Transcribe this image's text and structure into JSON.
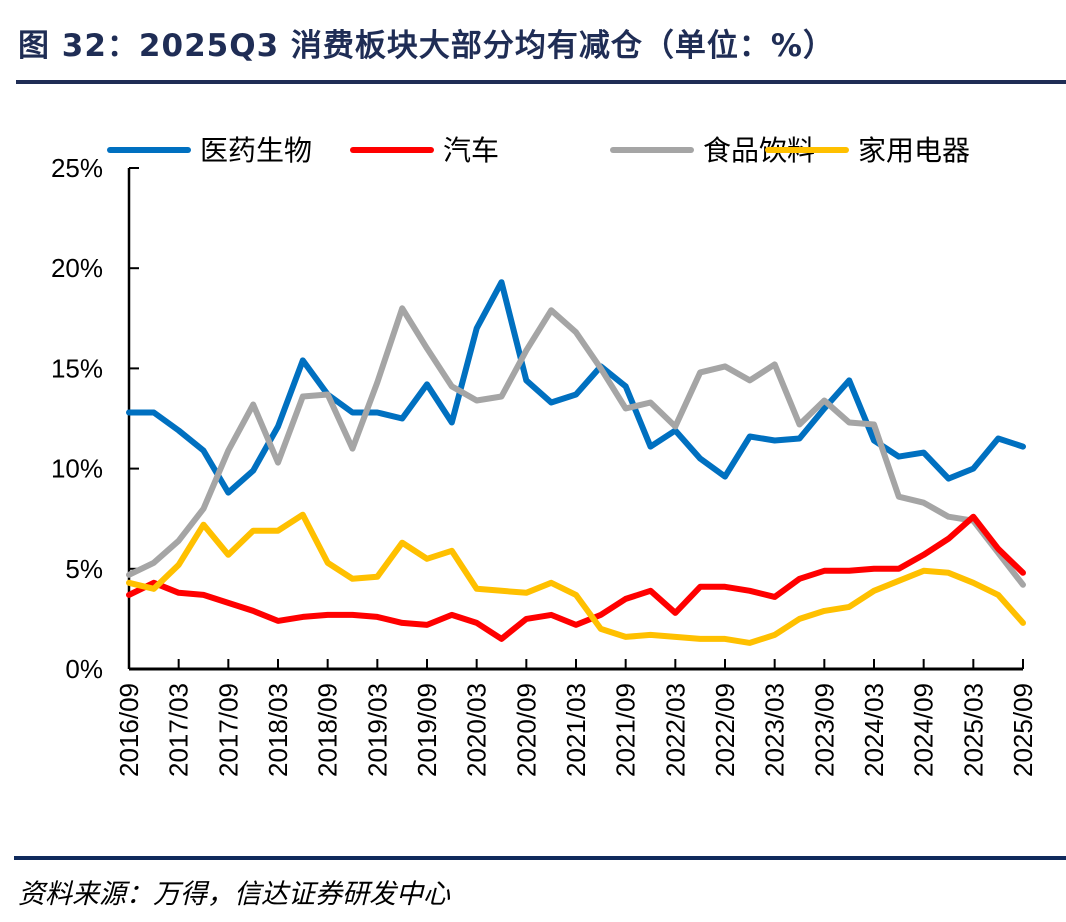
{
  "title": "图 32：2025Q3 消费板块大部分均有减仓（单位：%）",
  "source": "资料来源：万得，信达证券研发中心",
  "chart_data": {
    "type": "line",
    "title": "2025Q3 消费板块大部分均有减仓（单位：%）",
    "xlabel": "",
    "ylabel": "",
    "unit": "%",
    "ylim": [
      0,
      25
    ],
    "yticks": [
      0,
      5,
      10,
      15,
      20,
      25
    ],
    "ytick_labels": [
      "0%",
      "5%",
      "10%",
      "15%",
      "20%",
      "25%"
    ],
    "grid": false,
    "legend_position": "top",
    "x": [
      "2016/09",
      "2016/12",
      "2017/03",
      "2017/06",
      "2017/09",
      "2017/12",
      "2018/03",
      "2018/06",
      "2018/09",
      "2018/12",
      "2019/03",
      "2019/06",
      "2019/09",
      "2019/12",
      "2020/03",
      "2020/06",
      "2020/09",
      "2020/12",
      "2021/03",
      "2021/06",
      "2021/09",
      "2021/12",
      "2022/03",
      "2022/06",
      "2022/09",
      "2022/12",
      "2023/03",
      "2023/06",
      "2023/09",
      "2023/12",
      "2024/03",
      "2024/06",
      "2024/09",
      "2024/12",
      "2025/03",
      "2025/06",
      "2025/09"
    ],
    "xtick_labels": [
      "2016/09",
      "2017/03",
      "2017/09",
      "2018/03",
      "2018/09",
      "2019/03",
      "2019/09",
      "2020/03",
      "2020/09",
      "2021/03",
      "2021/09",
      "2022/03",
      "2022/09",
      "2023/03",
      "2023/09",
      "2024/03",
      "2024/09",
      "2025/03",
      "2025/09"
    ],
    "series": [
      {
        "name": "医药生物",
        "color": "#0070c0",
        "values": [
          12.8,
          12.8,
          11.9,
          10.9,
          8.8,
          9.9,
          12.1,
          15.4,
          13.7,
          12.8,
          12.8,
          12.5,
          14.2,
          12.3,
          17.0,
          19.3,
          14.4,
          13.3,
          13.7,
          15.1,
          14.1,
          11.1,
          11.9,
          10.5,
          9.6,
          11.6,
          11.4,
          11.5,
          13.0,
          14.4,
          11.4,
          10.6,
          10.8,
          9.5,
          10.0,
          11.5,
          11.1
        ]
      },
      {
        "name": "汽车",
        "color": "#ff0000",
        "values": [
          3.7,
          4.3,
          3.8,
          3.7,
          3.3,
          2.9,
          2.4,
          2.6,
          2.7,
          2.7,
          2.6,
          2.3,
          2.2,
          2.7,
          2.3,
          1.5,
          2.5,
          2.7,
          2.2,
          2.7,
          3.5,
          3.9,
          2.8,
          4.1,
          4.1,
          3.9,
          3.6,
          4.5,
          4.9,
          4.9,
          5.0,
          5.0,
          5.7,
          6.5,
          7.6,
          6.0,
          4.8
        ]
      },
      {
        "name": "食品饮料",
        "color": "#a5a5a5",
        "values": [
          4.7,
          5.3,
          6.4,
          8.0,
          10.9,
          13.2,
          10.3,
          13.6,
          13.7,
          11.0,
          14.3,
          18.0,
          16.0,
          14.1,
          13.4,
          13.6,
          15.9,
          17.9,
          16.8,
          15.0,
          13.0,
          13.3,
          12.1,
          14.8,
          15.1,
          14.4,
          15.2,
          12.2,
          13.4,
          12.3,
          12.2,
          8.6,
          8.3,
          7.6,
          7.4,
          5.8,
          4.2
        ]
      },
      {
        "name": "家用电器",
        "color": "#ffc000",
        "values": [
          4.3,
          4.0,
          5.2,
          7.2,
          5.7,
          6.9,
          6.9,
          7.7,
          5.3,
          4.5,
          4.6,
          6.3,
          5.5,
          5.9,
          4.0,
          3.9,
          3.8,
          4.3,
          3.7,
          2.0,
          1.6,
          1.7,
          1.6,
          1.5,
          1.5,
          1.3,
          1.7,
          2.5,
          2.9,
          3.1,
          3.9,
          4.4,
          4.9,
          4.8,
          4.3,
          3.7,
          2.3
        ]
      }
    ]
  }
}
